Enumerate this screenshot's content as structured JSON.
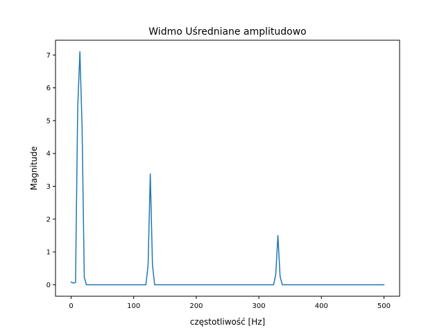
{
  "chart_data": {
    "type": "line",
    "title": "Widmo Uśredniane amplitudowo",
    "xlabel": "częstotliwość [Hz]",
    "ylabel": "Magnitude",
    "xlim": [
      -25,
      525
    ],
    "ylim": [
      -0.35,
      7.45
    ],
    "xticks": [
      0,
      100,
      200,
      300,
      400,
      500
    ],
    "yticks": [
      0,
      1,
      2,
      3,
      4,
      5,
      6,
      7
    ],
    "grid": false,
    "legend": "none",
    "series": [
      {
        "color": "#1f77b4",
        "x": [
          0,
          3.5,
          7,
          10.5,
          14,
          17.5,
          21,
          24.5,
          116,
          119.5,
          123,
          126.5,
          130,
          133.5,
          320,
          323.5,
          327,
          330.5,
          334,
          337.5,
          500
        ],
        "y": [
          0.08,
          0.05,
          0.07,
          5.4,
          7.1,
          4.8,
          0.22,
          0.0,
          0.0,
          0.0,
          0.6,
          3.38,
          0.6,
          0.0,
          0.0,
          0.0,
          0.3,
          1.5,
          0.25,
          0.0,
          0.0
        ]
      }
    ]
  }
}
